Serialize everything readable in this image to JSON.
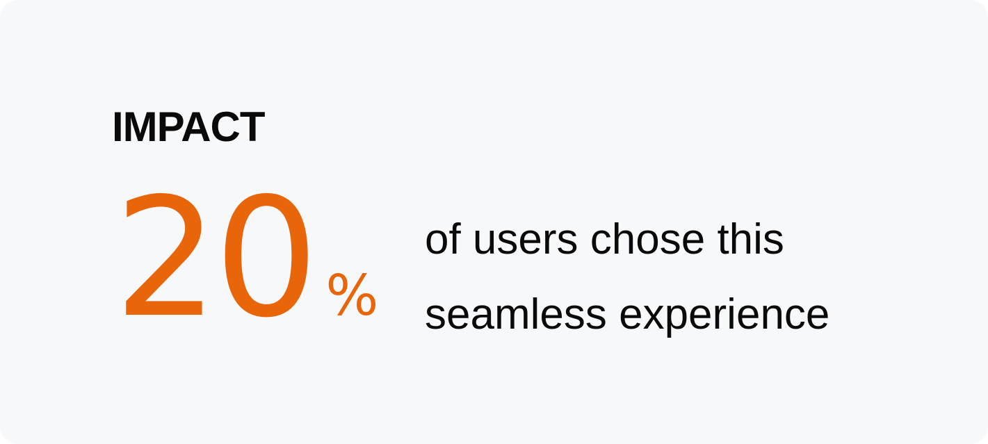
{
  "card": {
    "heading": "IMPACT",
    "stat": {
      "value": "20",
      "unit": "%"
    },
    "description": {
      "line1": "of users chose this",
      "line2": "seamless experience"
    }
  },
  "colors": {
    "accent": "#e8650a",
    "text": "#0a0a0a",
    "card_background": "#f7f8fa"
  }
}
